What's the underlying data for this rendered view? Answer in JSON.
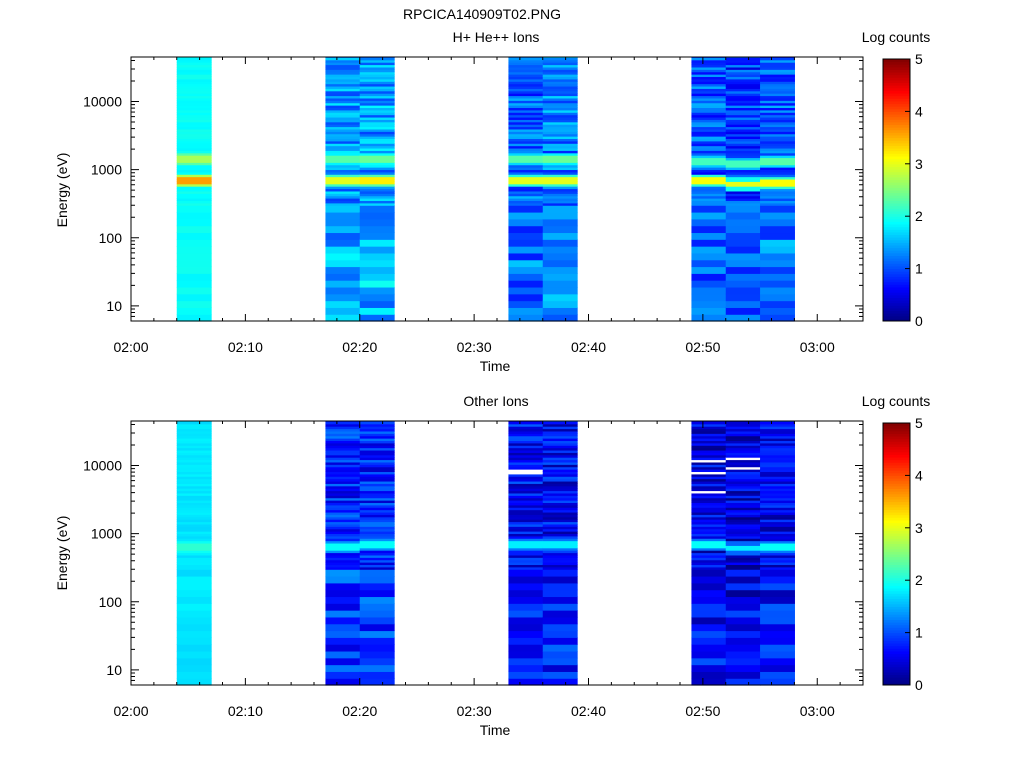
{
  "figure_title": "RPCICA140909T02.PNG",
  "chart_data": [
    {
      "type": "heatmap",
      "title": "H+ He++ Ions",
      "xlabel": "Time",
      "ylabel": "Energy (eV)",
      "yscale": "log",
      "ylim": [
        6,
        45000
      ],
      "xlim": [
        "02:00",
        "03:04"
      ],
      "x_ticks": [
        "02:00",
        "02:10",
        "02:20",
        "02:30",
        "02:40",
        "02:50",
        "03:00"
      ],
      "y_ticks": [
        "10",
        "100",
        "1000",
        "10000"
      ],
      "colorbar": {
        "label": "Log counts",
        "range": [
          0,
          5
        ],
        "ticks": [
          "0",
          "1",
          "2",
          "3",
          "4",
          "5"
        ]
      },
      "columns": [
        {
          "start": "02:04",
          "end": "02:07",
          "base": 1.9,
          "profile": "flat",
          "bands": [
            {
              "energy": 680,
              "value": 3.6
            },
            {
              "energy": 1400,
              "value": 2.7
            }
          ]
        },
        {
          "start": "02:17",
          "end": "02:20",
          "base": 1.35,
          "profile": "mix",
          "bands": [
            {
              "energy": 680,
              "value": 3.0
            },
            {
              "energy": 1400,
              "value": 2.3
            }
          ]
        },
        {
          "start": "02:20",
          "end": "02:23",
          "base": 1.4,
          "profile": "mix",
          "bands": [
            {
              "energy": 700,
              "value": 3.2
            },
            {
              "energy": 1400,
              "value": 2.4
            }
          ]
        },
        {
          "start": "02:33",
          "end": "02:36",
          "base": 1.1,
          "profile": "mix",
          "bands": [
            {
              "energy": 680,
              "value": 3.0
            },
            {
              "energy": 1400,
              "value": 2.3
            }
          ]
        },
        {
          "start": "02:36",
          "end": "02:39",
          "base": 1.25,
          "profile": "mix",
          "bands": [
            {
              "energy": 680,
              "value": 3.0
            },
            {
              "energy": 1400,
              "value": 2.4
            }
          ]
        },
        {
          "start": "02:49",
          "end": "02:52",
          "base": 1.05,
          "profile": "mix",
          "bands": [
            {
              "energy": 720,
              "value": 3.1
            },
            {
              "energy": 1300,
              "value": 2.2
            }
          ]
        },
        {
          "start": "02:52",
          "end": "02:55",
          "base": 0.9,
          "profile": "mix",
          "bands": [
            {
              "energy": 620,
              "value": 3.0
            },
            {
              "energy": 1250,
              "value": 2.2
            }
          ]
        },
        {
          "start": "02:55",
          "end": "02:58",
          "base": 1.1,
          "profile": "mix",
          "bands": [
            {
              "energy": 650,
              "value": 3.1
            },
            {
              "energy": 1350,
              "value": 2.3
            }
          ]
        }
      ]
    },
    {
      "type": "heatmap",
      "title": "Other Ions",
      "xlabel": "Time",
      "ylabel": "Energy (eV)",
      "yscale": "log",
      "ylim": [
        6,
        45000
      ],
      "xlim": [
        "02:00",
        "03:04"
      ],
      "x_ticks": [
        "02:00",
        "02:10",
        "02:20",
        "02:30",
        "02:40",
        "02:50",
        "03:00"
      ],
      "y_ticks": [
        "10",
        "100",
        "1000",
        "10000"
      ],
      "colorbar": {
        "label": "Log counts",
        "range": [
          0,
          5
        ],
        "ticks": [
          "0",
          "1",
          "2",
          "3",
          "4",
          "5"
        ]
      },
      "columns": [
        {
          "start": "02:04",
          "end": "02:07",
          "base": 1.75,
          "profile": "flat",
          "bands": [
            {
              "energy": 650,
              "value": 2.1
            }
          ]
        },
        {
          "start": "02:17",
          "end": "02:20",
          "base": 0.8,
          "profile": "mix",
          "bands": [
            {
              "energy": 650,
              "value": 1.9
            }
          ]
        },
        {
          "start": "02:20",
          "end": "02:23",
          "base": 0.75,
          "profile": "mix",
          "bands": [
            {
              "energy": 680,
              "value": 1.9
            }
          ]
        },
        {
          "start": "02:33",
          "end": "02:36",
          "base": 0.65,
          "profile": "mix",
          "bands": [
            {
              "energy": 680,
              "value": 1.8
            }
          ]
        },
        {
          "start": "02:36",
          "end": "02:39",
          "base": 0.6,
          "profile": "mix",
          "bands": [
            {
              "energy": 680,
              "value": 1.8
            }
          ]
        },
        {
          "start": "02:49",
          "end": "02:52",
          "base": 0.5,
          "profile": "mix",
          "bands": [
            {
              "energy": 720,
              "value": 1.9
            }
          ]
        },
        {
          "start": "02:52",
          "end": "02:55",
          "base": 0.45,
          "profile": "mix",
          "bands": [
            {
              "energy": 620,
              "value": 1.8
            }
          ]
        },
        {
          "start": "02:55",
          "end": "02:58",
          "base": 0.55,
          "profile": "mix",
          "bands": [
            {
              "energy": 650,
              "value": 1.9
            }
          ]
        }
      ],
      "empty_bins": [
        {
          "column": 3,
          "energy": 8200
        },
        {
          "column": 3,
          "energy": 7600
        },
        {
          "column": 5,
          "energy": 11500
        },
        {
          "column": 5,
          "energy": 8000
        },
        {
          "column": 5,
          "energy": 4000
        },
        {
          "column": 6,
          "energy": 12500
        },
        {
          "column": 6,
          "energy": 9300
        }
      ]
    }
  ]
}
